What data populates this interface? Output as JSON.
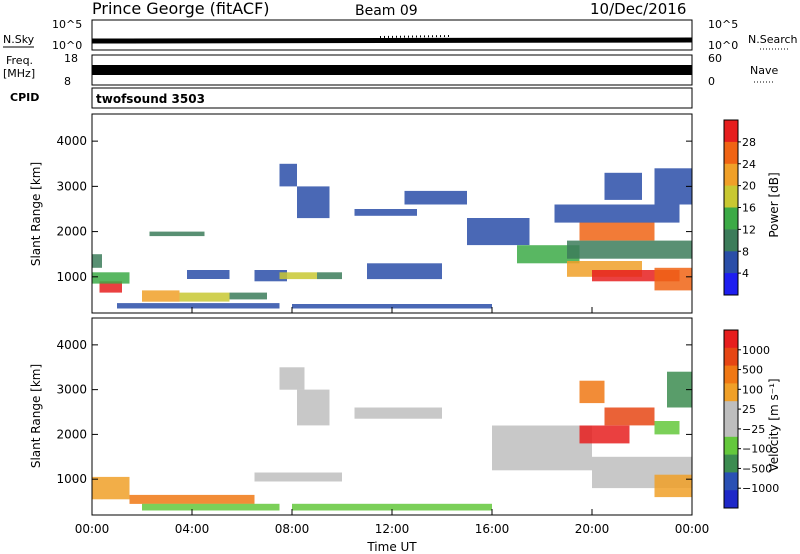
{
  "header": {
    "station": "Prince George (fitACF)",
    "beam": "Beam 09",
    "date": "10/Dec/2016"
  },
  "top_panels": {
    "nsky_label": "N.Sky",
    "nsky_ticks": [
      "10^5",
      "10^0"
    ],
    "nsearch_label": "N.Search",
    "nsearch_ticks": [
      "10^5",
      "10^0"
    ],
    "freq_label": "Freq.",
    "freq_unit": "[MHz]",
    "freq_ticks": [
      "18",
      "8"
    ],
    "nave_label": "Nave",
    "nave_ticks": [
      "60",
      "0"
    ],
    "cpid_label": "CPID",
    "cpid_value": "twofsound 3503"
  },
  "colors": {
    "power": [
      "#1e1ef0",
      "#2a4ea8",
      "#3c7c5a",
      "#3caa46",
      "#c8c832",
      "#f0a028",
      "#f06414",
      "#e61e1e"
    ],
    "velocity": [
      "#1e28c8",
      "#2a50b4",
      "#3c8c50",
      "#64c83c",
      "#bebebe",
      "#bebebe",
      "#f0a028",
      "#f07814",
      "#e64614",
      "#e61e1e"
    ]
  },
  "chart_data": [
    {
      "type": "heatmap",
      "ylabel": "Slant Range [km]",
      "yticks": [
        "1000",
        "2000",
        "3000",
        "4000"
      ],
      "ylim": [
        200,
        4600
      ],
      "xlim": [
        0,
        24
      ],
      "colorbar_label": "Power [dB]",
      "colorbar_ticks": [
        "28",
        "24",
        "20",
        "16",
        "12",
        "8",
        "4"
      ],
      "regions": [
        {
          "t0": 0.0,
          "t1": 0.4,
          "r0": 1200,
          "r1": 1500,
          "level": 2
        },
        {
          "t0": 0.3,
          "t1": 1.2,
          "r0": 650,
          "r1": 900,
          "level": 7
        },
        {
          "t0": 0.0,
          "t1": 1.5,
          "r0": 850,
          "r1": 1100,
          "level": 3
        },
        {
          "t0": 1.0,
          "t1": 7.5,
          "r0": 300,
          "r1": 420,
          "level": 1
        },
        {
          "t0": 2.0,
          "t1": 3.5,
          "r0": 450,
          "r1": 700,
          "level": 5
        },
        {
          "t0": 3.5,
          "t1": 5.5,
          "r0": 450,
          "r1": 650,
          "level": 4
        },
        {
          "t0": 5.5,
          "t1": 7.0,
          "r0": 500,
          "r1": 650,
          "level": 2
        },
        {
          "t0": 2.3,
          "t1": 4.5,
          "r0": 1900,
          "r1": 2000,
          "level": 2
        },
        {
          "t0": 3.8,
          "t1": 5.5,
          "r0": 950,
          "r1": 1150,
          "level": 1
        },
        {
          "t0": 6.5,
          "t1": 7.8,
          "r0": 900,
          "r1": 1150,
          "level": 1
        },
        {
          "t0": 7.5,
          "t1": 9.0,
          "r0": 950,
          "r1": 1100,
          "level": 4
        },
        {
          "t0": 9.0,
          "t1": 10.0,
          "r0": 950,
          "r1": 1100,
          "level": 2
        },
        {
          "t0": 7.5,
          "t1": 8.2,
          "r0": 3000,
          "r1": 3500,
          "level": 1
        },
        {
          "t0": 8.2,
          "t1": 9.5,
          "r0": 2300,
          "r1": 3000,
          "level": 1
        },
        {
          "t0": 10.5,
          "t1": 13.0,
          "r0": 2350,
          "r1": 2500,
          "level": 1
        },
        {
          "t0": 11.0,
          "t1": 14.0,
          "r0": 950,
          "r1": 1300,
          "level": 1
        },
        {
          "t0": 8.0,
          "t1": 16.0,
          "r0": 300,
          "r1": 400,
          "level": 1
        },
        {
          "t0": 12.5,
          "t1": 15.0,
          "r0": 2600,
          "r1": 2900,
          "level": 1
        },
        {
          "t0": 15.0,
          "t1": 17.5,
          "r0": 1700,
          "r1": 2300,
          "level": 1
        },
        {
          "t0": 17.0,
          "t1": 19.5,
          "r0": 1300,
          "r1": 1700,
          "level": 3
        },
        {
          "t0": 19.0,
          "t1": 22.0,
          "r0": 1000,
          "r1": 1350,
          "level": 5
        },
        {
          "t0": 20.0,
          "t1": 23.5,
          "r0": 900,
          "r1": 1150,
          "level": 7
        },
        {
          "t0": 22.5,
          "t1": 24.0,
          "r0": 700,
          "r1": 1200,
          "level": 6
        },
        {
          "t0": 19.5,
          "t1": 22.5,
          "r0": 1800,
          "r1": 2200,
          "level": 6
        },
        {
          "t0": 18.5,
          "t1": 23.5,
          "r0": 2200,
          "r1": 2600,
          "level": 1
        },
        {
          "t0": 19.0,
          "t1": 24.0,
          "r0": 1400,
          "r1": 1800,
          "level": 2
        },
        {
          "t0": 20.5,
          "t1": 22.0,
          "r0": 2700,
          "r1": 3300,
          "level": 1
        },
        {
          "t0": 22.5,
          "t1": 24.0,
          "r0": 2600,
          "r1": 3400,
          "level": 1
        }
      ]
    },
    {
      "type": "heatmap",
      "ylabel": "Slant Range [km]",
      "yticks": [
        "1000",
        "2000",
        "3000",
        "4000"
      ],
      "ylim": [
        200,
        4600
      ],
      "xlim": [
        0,
        24
      ],
      "xlabel": "Time UT",
      "xticks": [
        "00:00",
        "04:00",
        "08:00",
        "12:00",
        "16:00",
        "20:00",
        "00:00"
      ],
      "colorbar_label": "Velocity [m s⁻¹]",
      "colorbar_ticks": [
        "1000",
        "500",
        "100",
        "25",
        "−25",
        "−100",
        "−500",
        "−1000"
      ],
      "regions": [
        {
          "t0": 0.0,
          "t1": 1.5,
          "r0": 550,
          "r1": 1050,
          "level": 6
        },
        {
          "t0": 1.5,
          "t1": 6.5,
          "r0": 450,
          "r1": 650,
          "level": 7
        },
        {
          "t0": 2.0,
          "t1": 7.5,
          "r0": 300,
          "r1": 450,
          "level": 3
        },
        {
          "t0": 7.5,
          "t1": 8.5,
          "r0": 3000,
          "r1": 3500,
          "level": 4
        },
        {
          "t0": 8.2,
          "t1": 9.5,
          "r0": 2200,
          "r1": 3000,
          "level": 4
        },
        {
          "t0": 6.5,
          "t1": 10.0,
          "r0": 950,
          "r1": 1150,
          "level": 4
        },
        {
          "t0": 8.0,
          "t1": 16.0,
          "r0": 300,
          "r1": 450,
          "level": 3
        },
        {
          "t0": 10.5,
          "t1": 14.0,
          "r0": 2350,
          "r1": 2600,
          "level": 4
        },
        {
          "t0": 16.0,
          "t1": 20.0,
          "r0": 1200,
          "r1": 2200,
          "level": 4
        },
        {
          "t0": 20.0,
          "t1": 24.0,
          "r0": 800,
          "r1": 1500,
          "level": 5
        },
        {
          "t0": 22.5,
          "t1": 24.0,
          "r0": 600,
          "r1": 1100,
          "level": 6
        },
        {
          "t0": 19.5,
          "t1": 21.5,
          "r0": 1800,
          "r1": 2200,
          "level": 9
        },
        {
          "t0": 20.5,
          "t1": 22.5,
          "r0": 2200,
          "r1": 2600,
          "level": 8
        },
        {
          "t0": 22.5,
          "t1": 23.5,
          "r0": 2000,
          "r1": 2300,
          "level": 3
        },
        {
          "t0": 19.5,
          "t1": 20.5,
          "r0": 2700,
          "r1": 3200,
          "level": 7
        },
        {
          "t0": 23.0,
          "t1": 24.0,
          "r0": 2600,
          "r1": 3400,
          "level": 2
        }
      ]
    }
  ]
}
